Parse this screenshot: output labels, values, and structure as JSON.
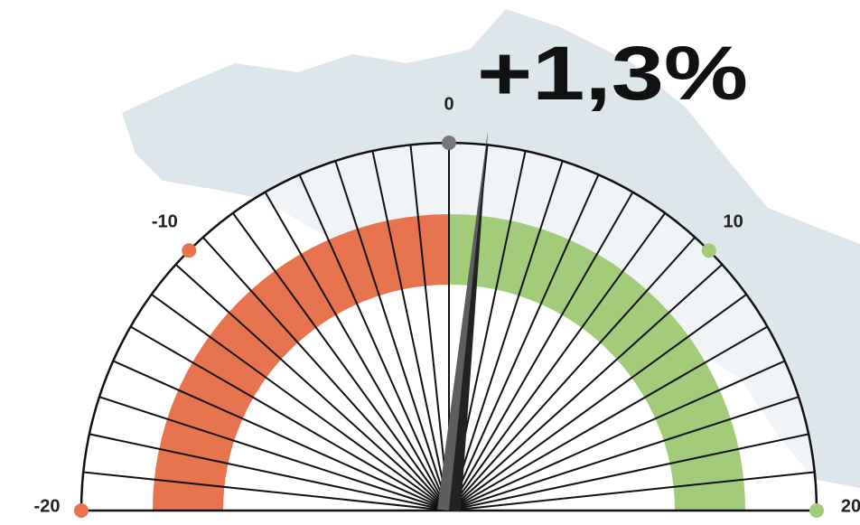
{
  "chart_data": {
    "type": "gauge",
    "value": 1.3,
    "value_label": "+1,3%",
    "xlim": [
      -20,
      20
    ],
    "xticks": [
      -20,
      -10,
      0,
      10,
      20
    ],
    "bands": [
      {
        "range": [
          -20,
          0
        ],
        "color": "#e8734f"
      },
      {
        "range": [
          0,
          20
        ],
        "color": "#a3cc7a"
      }
    ],
    "tick_colors": [
      "#e8734f",
      "#e8734f",
      "#777777",
      "#a3cc7a",
      "#a3cc7a"
    ],
    "needle_color": "#222222"
  }
}
